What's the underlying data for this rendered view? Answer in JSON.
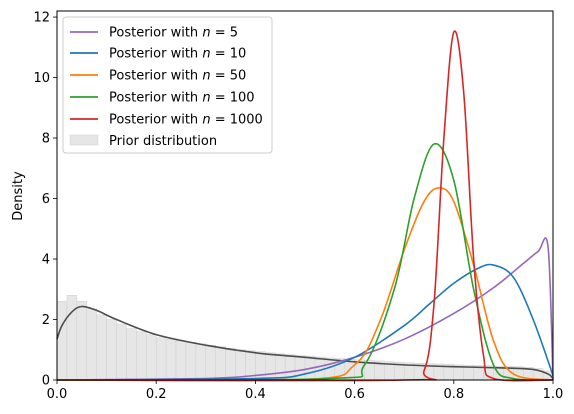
{
  "chart_data": {
    "type": "line",
    "title": "",
    "xlabel": "",
    "ylabel": "Density",
    "xlim": [
      0.0,
      1.0
    ],
    "ylim": [
      0,
      12.2
    ],
    "x_ticks": [
      "0.0",
      "0.2",
      "0.4",
      "0.6",
      "0.8",
      "1.0"
    ],
    "y_ticks": [
      "0",
      "2",
      "4",
      "6",
      "8",
      "10",
      "12"
    ],
    "legend_position": "upper-left",
    "series": [
      {
        "name": "Posterior with n = 5",
        "legend_label": "Posterior with ",
        "n": "5",
        "color": "#9467bd",
        "x": [
          0.0,
          0.3,
          0.4,
          0.5,
          0.6,
          0.7,
          0.8,
          0.88,
          0.94,
          0.97,
          0.99,
          1.0
        ],
        "y": [
          0.0,
          0.05,
          0.15,
          0.35,
          0.75,
          1.35,
          2.2,
          3.05,
          3.85,
          4.25,
          4.4,
          0.0
        ]
      },
      {
        "name": "Posterior with n = 10",
        "legend_label": "Posterior with ",
        "n": "10",
        "color": "#1f77b4",
        "x": [
          0.0,
          0.4,
          0.5,
          0.6,
          0.7,
          0.75,
          0.8,
          0.85,
          0.88,
          0.92,
          0.96,
          1.0
        ],
        "y": [
          0.0,
          0.05,
          0.2,
          0.75,
          1.8,
          2.5,
          3.2,
          3.7,
          3.8,
          3.4,
          2.0,
          0.15
        ]
      },
      {
        "name": "Posterior with n = 50",
        "legend_label": "Posterior with ",
        "n": "50",
        "color": "#ff7f0e",
        "x": [
          0.0,
          0.5,
          0.6,
          0.65,
          0.7,
          0.74,
          0.77,
          0.8,
          0.84,
          0.88,
          0.92,
          1.0
        ],
        "y": [
          0.0,
          0.02,
          0.5,
          1.9,
          4.3,
          5.9,
          6.35,
          5.9,
          3.8,
          1.3,
          0.2,
          0.0
        ]
      },
      {
        "name": "Posterior with n = 100",
        "legend_label": "Posterior with ",
        "n": "100",
        "color": "#2ca02c",
        "x": [
          0.0,
          0.55,
          0.62,
          0.68,
          0.72,
          0.76,
          0.8,
          0.84,
          0.88,
          0.92,
          1.0
        ],
        "y": [
          0.0,
          0.05,
          0.5,
          3.0,
          6.0,
          7.8,
          6.6,
          3.0,
          0.5,
          0.05,
          0.0
        ]
      },
      {
        "name": "Posterior with n = 1000",
        "legend_label": "Posterior with ",
        "n": "1000",
        "color": "#d62728",
        "x": [
          0.0,
          0.7,
          0.74,
          0.76,
          0.78,
          0.8,
          0.82,
          0.84,
          0.86,
          0.88,
          1.0
        ],
        "y": [
          0.0,
          0.0,
          0.3,
          2.5,
          8.0,
          11.5,
          9.5,
          4.0,
          0.8,
          0.05,
          0.0
        ]
      }
    ],
    "prior": {
      "name": "Prior distribution",
      "histogram_color": "#e6e6e6",
      "density_color": "#4d4d4d",
      "bin_width": 0.02,
      "bin_heights": [
        2.6,
        2.8,
        2.6,
        2.35,
        2.15,
        2.0,
        1.85,
        1.7,
        1.6,
        1.5,
        1.4,
        1.35,
        1.3,
        1.25,
        1.2,
        1.15,
        1.1,
        1.05,
        1.0,
        0.97,
        0.94,
        0.9,
        0.87,
        0.84,
        0.81,
        0.79,
        0.76,
        0.73,
        0.71,
        0.69,
        0.67,
        0.65,
        0.63,
        0.61,
        0.59,
        0.57,
        0.55,
        0.54,
        0.53,
        0.52,
        0.5,
        0.49,
        0.48,
        0.47,
        0.46,
        0.45,
        0.44,
        0.42,
        0.38,
        0.3
      ],
      "density_x": [
        0.0,
        0.01,
        0.03,
        0.05,
        0.08,
        0.12,
        0.2,
        0.3,
        0.4,
        0.5,
        0.6,
        0.7,
        0.8,
        0.9,
        0.96,
        0.99,
        1.0
      ],
      "density_y": [
        1.35,
        1.8,
        2.25,
        2.43,
        2.3,
        2.0,
        1.5,
        1.15,
        0.9,
        0.75,
        0.6,
        0.5,
        0.44,
        0.4,
        0.35,
        0.2,
        0.05
      ]
    }
  }
}
